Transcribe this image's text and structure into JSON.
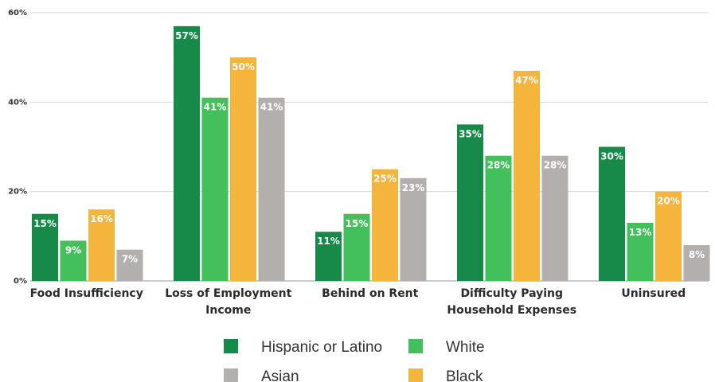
{
  "chart_data": {
    "type": "bar",
    "categories": [
      [
        "Food Insufficiency"
      ],
      [
        "Loss of Employment",
        "Income"
      ],
      [
        "Behind on Rent"
      ],
      [
        "Difficulty Paying",
        "Household Expenses"
      ],
      [
        "Uninsured"
      ]
    ],
    "series": [
      {
        "name": "Hispanic or Latino",
        "color": "#178a4a",
        "values": [
          15,
          57,
          11,
          35,
          30
        ],
        "labels": [
          "15%",
          "57%",
          "11%",
          "35%",
          "30%"
        ]
      },
      {
        "name": "White",
        "color": "#43c05c",
        "values": [
          9,
          41,
          15,
          28,
          13
        ],
        "labels": [
          "9%",
          "41%",
          "15%",
          "28%",
          "13%"
        ]
      },
      {
        "name": "Black",
        "color": "#f5b43c",
        "values": [
          16,
          50,
          25,
          47,
          20
        ],
        "labels": [
          "16%",
          "50%",
          "25%",
          "47%",
          "20%"
        ]
      },
      {
        "name": "Asian",
        "color": "#b3afad",
        "values": [
          7,
          41,
          23,
          28,
          8
        ],
        "labels": [
          "7%",
          "41%",
          "23%",
          "28%",
          "8%"
        ]
      }
    ],
    "ylim": [
      0,
      60
    ],
    "yticks": [
      0,
      20,
      40,
      60
    ],
    "ytick_labels": [
      "0%",
      "20%",
      "40%",
      "60%"
    ],
    "grid": true,
    "legend_position": "bottom",
    "legend_order": [
      "Hispanic or Latino",
      "White",
      "Asian",
      "Black"
    ]
  }
}
